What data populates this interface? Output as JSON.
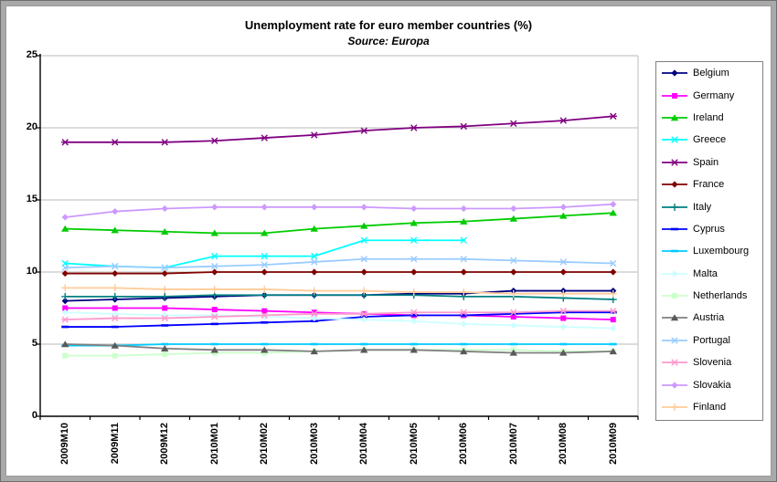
{
  "chart_data": {
    "type": "line",
    "title": "Unemployment rate for euro member countries (%)",
    "subtitle": "Source: Europa",
    "grid": "horizontal",
    "legend_position": "right",
    "ylim": [
      0,
      25
    ],
    "yticks": [
      0,
      5,
      10,
      15,
      20,
      25
    ],
    "categories": [
      "2009M10",
      "2009M11",
      "2009M12",
      "2010M01",
      "2010M02",
      "2010M03",
      "2010M04",
      "2010M05",
      "2010M06",
      "2010M07",
      "2010M08",
      "2010M09"
    ],
    "series": [
      {
        "name": "Belgium",
        "color": "#000080",
        "marker": "diamond",
        "values": [
          8.0,
          8.1,
          8.2,
          8.3,
          8.4,
          8.4,
          8.4,
          8.5,
          8.5,
          8.7,
          8.7,
          8.7
        ]
      },
      {
        "name": "Germany",
        "color": "#FF00FF",
        "marker": "square",
        "values": [
          7.5,
          7.5,
          7.5,
          7.4,
          7.3,
          7.2,
          7.1,
          7.0,
          7.0,
          6.9,
          6.8,
          6.7
        ]
      },
      {
        "name": "Ireland",
        "color": "#00CC00",
        "marker": "triangle",
        "values": [
          13.0,
          12.9,
          12.8,
          12.7,
          12.7,
          13.0,
          13.2,
          13.4,
          13.5,
          13.7,
          13.9,
          14.1
        ]
      },
      {
        "name": "Greece",
        "color": "#00FFFF",
        "marker": "x",
        "values": [
          10.6,
          10.4,
          10.3,
          11.1,
          11.1,
          11.1,
          12.2,
          12.2,
          12.2,
          null,
          null,
          null
        ]
      },
      {
        "name": "Spain",
        "color": "#800080",
        "marker": "star",
        "values": [
          19.0,
          19.0,
          19.0,
          19.1,
          19.3,
          19.5,
          19.8,
          20.0,
          20.1,
          20.3,
          20.5,
          20.8
        ]
      },
      {
        "name": "France",
        "color": "#800000",
        "marker": "diamond",
        "values": [
          9.9,
          9.9,
          9.9,
          10.0,
          10.0,
          10.0,
          10.0,
          10.0,
          10.0,
          10.0,
          10.0,
          10.0
        ]
      },
      {
        "name": "Italy",
        "color": "#008080",
        "marker": "plus",
        "values": [
          8.3,
          8.3,
          8.3,
          8.4,
          8.4,
          8.4,
          8.4,
          8.4,
          8.3,
          8.3,
          8.2,
          8.1
        ]
      },
      {
        "name": "Cyprus",
        "color": "#0000FF",
        "marker": "dash",
        "values": [
          6.2,
          6.2,
          6.3,
          6.4,
          6.5,
          6.6,
          6.9,
          7.0,
          7.0,
          7.1,
          7.2,
          7.2
        ]
      },
      {
        "name": "Luxembourg",
        "color": "#00CCFF",
        "marker": "dash",
        "values": [
          4.9,
          4.9,
          5.0,
          5.0,
          5.0,
          5.0,
          5.0,
          5.0,
          5.0,
          5.0,
          5.0,
          5.0
        ]
      },
      {
        "name": "Malta",
        "color": "#CCFFFF",
        "marker": "diamond",
        "values": [
          7.2,
          7.1,
          7.0,
          7.0,
          6.9,
          6.8,
          6.7,
          6.6,
          6.4,
          6.3,
          6.2,
          6.1
        ]
      },
      {
        "name": "Netherlands",
        "color": "#CCFFCC",
        "marker": "square",
        "values": [
          4.2,
          4.2,
          4.3,
          4.4,
          4.4,
          4.5,
          4.6,
          4.6,
          4.6,
          4.6,
          4.5,
          4.5
        ]
      },
      {
        "name": "Austria",
        "color": "#808080",
        "marker": "triangle",
        "marker_color": "#595959",
        "values": [
          5.0,
          4.9,
          4.7,
          4.6,
          4.6,
          4.5,
          4.6,
          4.6,
          4.5,
          4.4,
          4.4,
          4.5
        ]
      },
      {
        "name": "Portugal",
        "color": "#99CCFF",
        "marker": "x",
        "values": [
          10.3,
          10.4,
          10.3,
          10.4,
          10.5,
          10.7,
          10.9,
          10.9,
          10.9,
          10.8,
          10.7,
          10.6
        ]
      },
      {
        "name": "Slovenia",
        "color": "#FF99CC",
        "marker": "star",
        "values": [
          6.7,
          6.8,
          6.8,
          6.9,
          7.0,
          7.1,
          7.1,
          7.2,
          7.2,
          7.2,
          7.3,
          7.3
        ]
      },
      {
        "name": "Slovakia",
        "color": "#CC99FF",
        "marker": "diamond",
        "values": [
          13.8,
          14.2,
          14.4,
          14.5,
          14.5,
          14.5,
          14.5,
          14.4,
          14.4,
          14.4,
          14.5,
          14.7
        ]
      },
      {
        "name": "Finland",
        "color": "#FFCC99",
        "marker": "plus",
        "values": [
          8.9,
          8.9,
          8.8,
          8.8,
          8.8,
          8.7,
          8.7,
          8.6,
          8.6,
          8.5,
          8.5,
          8.5
        ]
      }
    ],
    "colors": {
      "gridline": "#c8c8c8",
      "axis": "#000000",
      "plot_border": "#c8c8c8",
      "background": "#ffffff"
    }
  }
}
